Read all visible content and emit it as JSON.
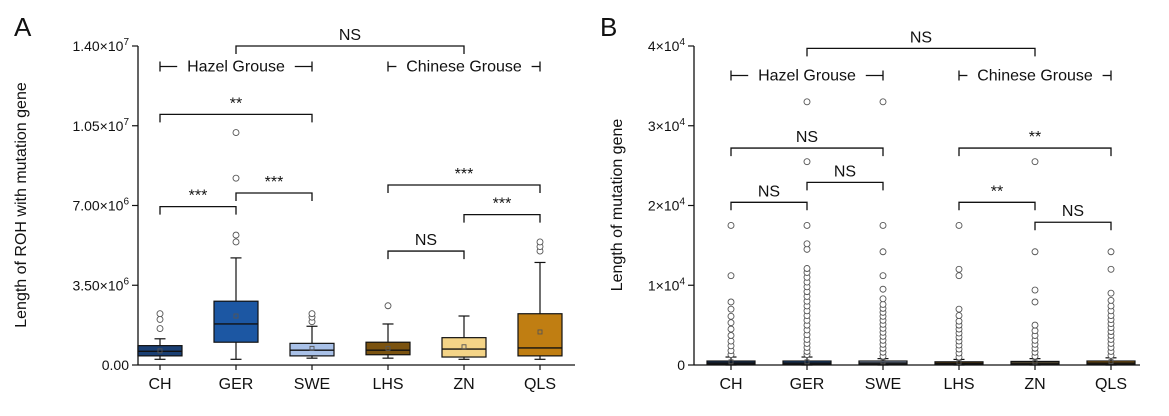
{
  "chart_data": [
    {
      "type": "box",
      "panel": "A",
      "ylabel": "Length of ROH with mutation gene",
      "ylim": [
        0,
        14000000
      ],
      "y_ticks": [
        {
          "base": "0.00",
          "exp": ""
        },
        {
          "base": "3.50×10",
          "exp": "6"
        },
        {
          "base": "7.00×10",
          "exp": "6"
        },
        {
          "base": "1.05×10",
          "exp": "7"
        },
        {
          "base": "1.40×10",
          "exp": "7"
        }
      ],
      "y_tick_values": [
        0,
        3500000,
        7000000,
        10500000,
        14000000
      ],
      "categories": [
        "CH",
        "GER",
        "SWE",
        "LHS",
        "ZN",
        "QLS"
      ],
      "colors": [
        "#1a3f73",
        "#1c57a3",
        "#a9c1e8",
        "#7b5310",
        "#f4d487",
        "#c07e12"
      ],
      "boxes": [
        {
          "whisker_low": 250000,
          "q1": 400000,
          "median": 600000,
          "q3": 850000,
          "whisker_high": 1150000,
          "mean": 620000,
          "outliers": [
            1600000,
            2000000,
            2250000
          ]
        },
        {
          "whisker_low": 250000,
          "q1": 1000000,
          "median": 1800000,
          "q3": 2800000,
          "whisker_high": 4700000,
          "mean": 2150000,
          "outliers": [
            5400000,
            5700000,
            8200000,
            10200000
          ]
        },
        {
          "whisker_low": 300000,
          "q1": 400000,
          "median": 650000,
          "q3": 950000,
          "whisker_high": 1700000,
          "mean": 730000,
          "outliers": [
            1900000,
            2100000,
            2250000
          ]
        },
        {
          "whisker_low": 300000,
          "q1": 450000,
          "median": 650000,
          "q3": 1000000,
          "whisker_high": 1800000,
          "mean": 730000,
          "outliers": [
            2600000
          ]
        },
        {
          "whisker_low": 250000,
          "q1": 350000,
          "median": 700000,
          "q3": 1200000,
          "whisker_high": 2150000,
          "mean": 800000,
          "outliers": []
        },
        {
          "whisker_low": 250000,
          "q1": 400000,
          "median": 750000,
          "q3": 2250000,
          "whisker_high": 4500000,
          "mean": 1450000,
          "outliers": [
            5000000,
            5200000,
            5400000
          ]
        }
      ],
      "group_labels": [
        {
          "text": "Hazel Grouse",
          "from": 0,
          "to": 2,
          "y": 13100000
        },
        {
          "text": "Chinese Grouse",
          "from": 3,
          "to": 5,
          "y": 13100000
        }
      ],
      "comparisons": [
        {
          "from": 1,
          "to": 4,
          "label": "NS",
          "y": 14000000
        },
        {
          "from": 0,
          "to": 2,
          "label": "**",
          "y": 11000000
        },
        {
          "from": 0,
          "to": 1,
          "label": "***",
          "y": 6950000
        },
        {
          "from": 1,
          "to": 2,
          "label": "***",
          "y": 7550000
        },
        {
          "from": 3,
          "to": 5,
          "label": "***",
          "y": 7900000
        },
        {
          "from": 4,
          "to": 5,
          "label": "***",
          "y": 6600000
        },
        {
          "from": 3,
          "to": 4,
          "label": "NS",
          "y": 5000000
        }
      ]
    },
    {
      "type": "box",
      "panel": "B",
      "ylabel": "Length of mutation gene",
      "ylim": [
        0,
        40000
      ],
      "y_ticks": [
        {
          "base": "0",
          "exp": ""
        },
        {
          "base": "1×10",
          "exp": "4"
        },
        {
          "base": "2×10",
          "exp": "4"
        },
        {
          "base": "3×10",
          "exp": "4"
        },
        {
          "base": "4×10",
          "exp": "4"
        }
      ],
      "y_tick_values": [
        0,
        10000,
        20000,
        30000,
        40000
      ],
      "categories": [
        "CH",
        "GER",
        "SWE",
        "LHS",
        "ZN",
        "QLS"
      ],
      "colors": [
        "#1a3f73",
        "#1c57a3",
        "#a9c1e8",
        "#7b5310",
        "#f4d487",
        "#c07e12"
      ],
      "boxes": [
        {
          "whisker_low": 0,
          "q1": 100,
          "median": 250,
          "q3": 500,
          "whisker_high": 1000,
          "mean": 400,
          "outliers": [
            1300,
            1800,
            2400,
            3000,
            3700,
            4500,
            5300,
            6100,
            7000,
            7900,
            11200,
            17500
          ]
        },
        {
          "whisker_low": 0,
          "q1": 100,
          "median": 250,
          "q3": 500,
          "whisker_high": 1000,
          "mean": 400,
          "outliers": [
            1300,
            1700,
            2200,
            2700,
            3200,
            3800,
            4400,
            5000,
            5600,
            6200,
            6800,
            7400,
            8000,
            8600,
            9200,
            9800,
            10400,
            11000,
            11600,
            12100,
            14500,
            15200,
            17500,
            25500,
            33000
          ]
        },
        {
          "whisker_low": 0,
          "q1": 100,
          "median": 250,
          "q3": 500,
          "whisker_high": 800,
          "mean": 400,
          "outliers": [
            1100,
            1600,
            2100,
            2600,
            3100,
            3600,
            4100,
            4600,
            5100,
            5600,
            6100,
            6600,
            7100,
            7600,
            8300,
            9500,
            11200,
            14200,
            17500,
            33000
          ]
        },
        {
          "whisker_low": 0,
          "q1": 100,
          "median": 200,
          "q3": 400,
          "whisker_high": 700,
          "mean": 350,
          "outliers": [
            1000,
            1500,
            2000,
            2500,
            3000,
            3500,
            4000,
            4500,
            5000,
            5500,
            6200,
            7000,
            11200,
            12000,
            17500
          ]
        },
        {
          "whisker_low": 0,
          "q1": 100,
          "median": 250,
          "q3": 450,
          "whisker_high": 800,
          "mean": 380,
          "outliers": [
            1100,
            1600,
            2100,
            2600,
            3100,
            3700,
            4300,
            5000,
            7900,
            9400,
            14200,
            25500
          ]
        },
        {
          "whisker_low": 0,
          "q1": 100,
          "median": 250,
          "q3": 500,
          "whisker_high": 900,
          "mean": 420,
          "outliers": [
            1200,
            1700,
            2200,
            2700,
            3200,
            3700,
            4200,
            4700,
            5200,
            5700,
            6200,
            6800,
            7400,
            8100,
            9000,
            12000,
            14200
          ]
        }
      ],
      "group_labels": [
        {
          "text": "Hazel Grouse",
          "from": 0,
          "to": 2,
          "y": 36300
        },
        {
          "text": "Chinese Grouse",
          "from": 3,
          "to": 5,
          "y": 36300
        }
      ],
      "comparisons": [
        {
          "from": 1,
          "to": 4,
          "label": "NS",
          "y": 39700
        },
        {
          "from": 0,
          "to": 2,
          "label": "NS",
          "y": 27200
        },
        {
          "from": 0,
          "to": 1,
          "label": "NS",
          "y": 20400
        },
        {
          "from": 1,
          "to": 2,
          "label": "NS",
          "y": 22900
        },
        {
          "from": 3,
          "to": 5,
          "label": "**",
          "y": 27200
        },
        {
          "from": 3,
          "to": 4,
          "label": "**",
          "y": 20400
        },
        {
          "from": 4,
          "to": 5,
          "label": "NS",
          "y": 17900
        }
      ]
    }
  ]
}
